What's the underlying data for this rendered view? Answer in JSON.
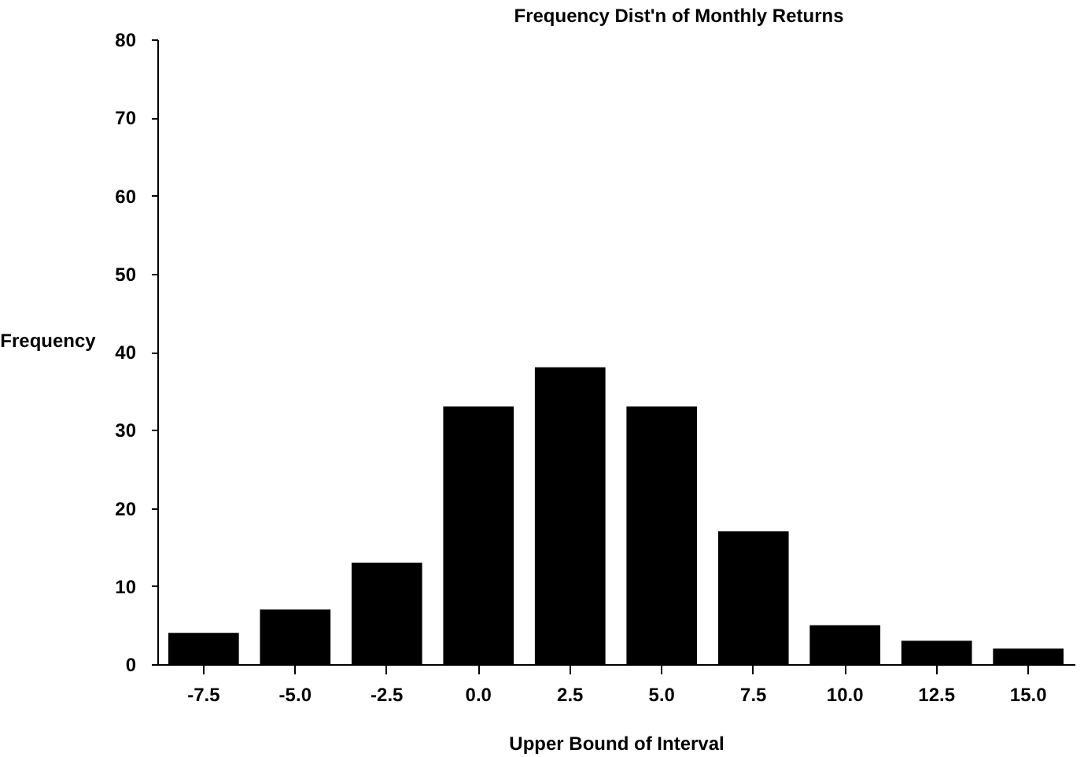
{
  "chart_data": {
    "type": "bar",
    "title": "Frequency Dist'n of Monthly Returns",
    "xlabel": "Upper Bound of Interval",
    "ylabel": "Frequency",
    "categories": [
      "-7.5",
      "-5.0",
      "-2.5",
      "0.0",
      "2.5",
      "5.0",
      "7.5",
      "10.0",
      "12.5",
      "15.0"
    ],
    "values": [
      4,
      7,
      13,
      33,
      38,
      33,
      17,
      5,
      3,
      2
    ],
    "color": "#000000",
    "ylim": [
      0,
      80
    ],
    "yticks": [
      0,
      10,
      20,
      30,
      40,
      50,
      60,
      70,
      80
    ],
    "grid": false
  }
}
